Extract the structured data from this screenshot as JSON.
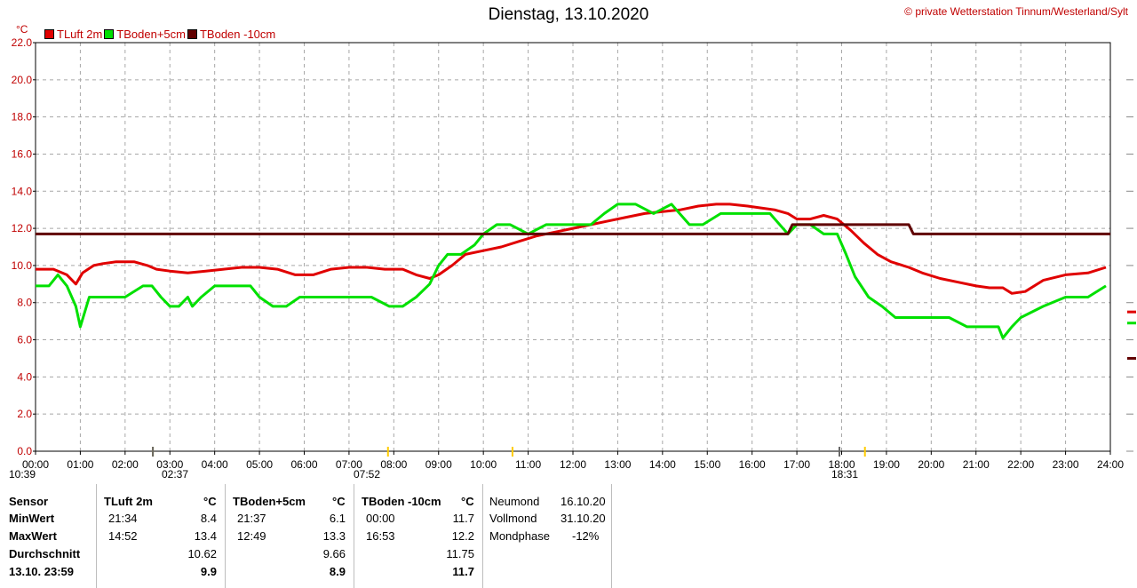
{
  "header": {
    "title": "Dienstag, 13.10.2020",
    "copyright": "© private Wetterstation Tinnum/Westerland/Sylt",
    "unit": "°C"
  },
  "legend": [
    {
      "label": "TLuft 2m",
      "color": "#e00000"
    },
    {
      "label": "TBoden+5cm",
      "color": "#00e000"
    },
    {
      "label": "TBoden -10cm",
      "color": "#600000"
    }
  ],
  "events": {
    "moonrise": "10:39",
    "moonset_time": "02:37",
    "sunrise": "07:52",
    "sunset": "18:31"
  },
  "chart_data": {
    "type": "line",
    "ylim": [
      0,
      22
    ],
    "yticks": [
      "0.0",
      "2.0",
      "4.0",
      "6.0",
      "8.0",
      "10.0",
      "12.0",
      "14.0",
      "16.0",
      "18.0",
      "20.0",
      "22.0"
    ],
    "xlim": [
      0,
      24
    ],
    "xticks": [
      "00:00",
      "01:00",
      "02:00",
      "03:00",
      "04:00",
      "05:00",
      "06:00",
      "07:00",
      "08:00",
      "09:00",
      "10:00",
      "11:00",
      "12:00",
      "13:00",
      "14:00",
      "15:00",
      "16:00",
      "17:00",
      "18:00",
      "19:00",
      "20:00",
      "21:00",
      "22:00",
      "23:00",
      "24:00"
    ],
    "grid": true,
    "series": [
      {
        "name": "TLuft 2m",
        "color": "#e00000",
        "x": [
          0,
          0.4,
          0.7,
          0.9,
          1.05,
          1.3,
          1.5,
          1.8,
          2.2,
          2.5,
          2.7,
          3.0,
          3.4,
          3.8,
          4.2,
          4.6,
          5.0,
          5.4,
          5.8,
          6.2,
          6.6,
          7.0,
          7.4,
          7.8,
          8.2,
          8.5,
          8.8,
          9.0,
          9.3,
          9.6,
          10.0,
          10.4,
          10.8,
          11.2,
          11.6,
          12.0,
          12.4,
          12.8,
          13.2,
          13.6,
          14.0,
          14.4,
          14.8,
          15.2,
          15.5,
          15.9,
          16.2,
          16.5,
          16.8,
          17.0,
          17.3,
          17.6,
          17.9,
          18.2,
          18.5,
          18.8,
          19.1,
          19.5,
          19.8,
          20.2,
          20.6,
          21.0,
          21.3,
          21.6,
          21.8,
          22.1,
          22.5,
          23.0,
          23.5,
          23.9
        ],
        "y": [
          9.8,
          9.8,
          9.5,
          9.0,
          9.6,
          10.0,
          10.1,
          10.2,
          10.2,
          10.0,
          9.8,
          9.7,
          9.6,
          9.7,
          9.8,
          9.9,
          9.9,
          9.8,
          9.5,
          9.5,
          9.8,
          9.9,
          9.9,
          9.8,
          9.8,
          9.5,
          9.3,
          9.5,
          10.0,
          10.6,
          10.8,
          11.0,
          11.3,
          11.6,
          11.8,
          12.0,
          12.2,
          12.4,
          12.6,
          12.8,
          12.9,
          13.0,
          13.2,
          13.3,
          13.3,
          13.2,
          13.1,
          13.0,
          12.8,
          12.5,
          12.5,
          12.7,
          12.5,
          11.9,
          11.2,
          10.6,
          10.2,
          9.9,
          9.6,
          9.3,
          9.1,
          8.9,
          8.8,
          8.8,
          8.5,
          8.6,
          9.2,
          9.5,
          9.6,
          9.9
        ]
      },
      {
        "name": "TBoden+5cm",
        "color": "#00e000",
        "x": [
          0,
          0.3,
          0.5,
          0.7,
          0.9,
          1.0,
          1.2,
          1.5,
          1.75,
          2.0,
          2.4,
          2.6,
          2.8,
          3.0,
          3.2,
          3.4,
          3.5,
          3.7,
          4.0,
          4.5,
          4.8,
          5.0,
          5.3,
          5.6,
          5.9,
          6.2,
          6.5,
          7.0,
          7.5,
          7.9,
          8.2,
          8.5,
          8.8,
          9.0,
          9.2,
          9.5,
          9.8,
          10.0,
          10.3,
          10.6,
          11.0,
          11.4,
          11.7,
          12.0,
          12.4,
          12.7,
          13.0,
          13.4,
          13.8,
          14.2,
          14.6,
          14.9,
          15.3,
          15.7,
          16.0,
          16.4,
          16.8,
          17.0,
          17.3,
          17.6,
          17.9,
          18.1,
          18.3,
          18.6,
          18.9,
          19.2,
          19.6,
          20.0,
          20.4,
          20.8,
          21.2,
          21.5,
          21.6,
          21.8,
          22.0,
          22.5,
          23.0,
          23.5,
          23.9
        ],
        "y": [
          8.9,
          8.9,
          9.5,
          8.9,
          7.8,
          6.7,
          8.3,
          8.3,
          8.3,
          8.3,
          8.9,
          8.9,
          8.3,
          7.8,
          7.8,
          8.3,
          7.8,
          8.3,
          8.9,
          8.9,
          8.9,
          8.3,
          7.8,
          7.8,
          8.3,
          8.3,
          8.3,
          8.3,
          8.3,
          7.8,
          7.8,
          8.3,
          9.0,
          10.0,
          10.6,
          10.6,
          11.1,
          11.7,
          12.2,
          12.2,
          11.7,
          12.2,
          12.2,
          12.2,
          12.2,
          12.8,
          13.3,
          13.3,
          12.8,
          13.3,
          12.2,
          12.2,
          12.8,
          12.8,
          12.8,
          12.8,
          11.7,
          12.2,
          12.2,
          11.7,
          11.7,
          10.6,
          9.4,
          8.3,
          7.8,
          7.2,
          7.2,
          7.2,
          7.2,
          6.7,
          6.7,
          6.7,
          6.1,
          6.7,
          7.2,
          7.8,
          8.3,
          8.3,
          8.9
        ]
      },
      {
        "name": "TBoden -10cm",
        "color": "#600000",
        "x": [
          0,
          1,
          2,
          3,
          4,
          5,
          6,
          7,
          8,
          9,
          10,
          11,
          12,
          13,
          14,
          15,
          16,
          16.8,
          16.9,
          17.5,
          18.0,
          18.5,
          19.0,
          19.5,
          19.6,
          20,
          21,
          22,
          23,
          24
        ],
        "y": [
          11.7,
          11.7,
          11.7,
          11.7,
          11.7,
          11.7,
          11.7,
          11.7,
          11.7,
          11.7,
          11.7,
          11.7,
          11.7,
          11.7,
          11.7,
          11.7,
          11.7,
          11.7,
          12.2,
          12.2,
          12.2,
          12.2,
          12.2,
          12.2,
          11.7,
          11.7,
          11.7,
          11.7,
          11.7,
          11.7
        ]
      }
    ]
  },
  "stats": {
    "row_labels": [
      "Sensor",
      "MinWert",
      "MaxWert",
      "Durchschnitt",
      "13.10. 23:59"
    ],
    "luft": {
      "header": "TLuft 2m",
      "unit": "°C",
      "min_time": "21:34",
      "min": "8.4",
      "max_time": "14:52",
      "max": "13.4",
      "avg": "10.62",
      "last": "9.9"
    },
    "boden5": {
      "header": "TBoden+5cm",
      "unit": "°C",
      "min_time": "21:37",
      "min": "6.1",
      "max_time": "12:49",
      "max": "13.3",
      "avg": "9.66",
      "last": "8.9"
    },
    "boden10": {
      "header": "TBoden -10cm",
      "unit": "°C",
      "min_time": "00:00",
      "min": "11.7",
      "max_time": "16:53",
      "max": "12.2",
      "avg": "11.75",
      "last": "11.7"
    },
    "moon": {
      "neumond_label": "Neumond",
      "neumond": "16.10.20",
      "vollmond_label": "Vollmond",
      "vollmond": "31.10.20",
      "phase_label": "Mondphase",
      "phase": "-12%"
    }
  }
}
